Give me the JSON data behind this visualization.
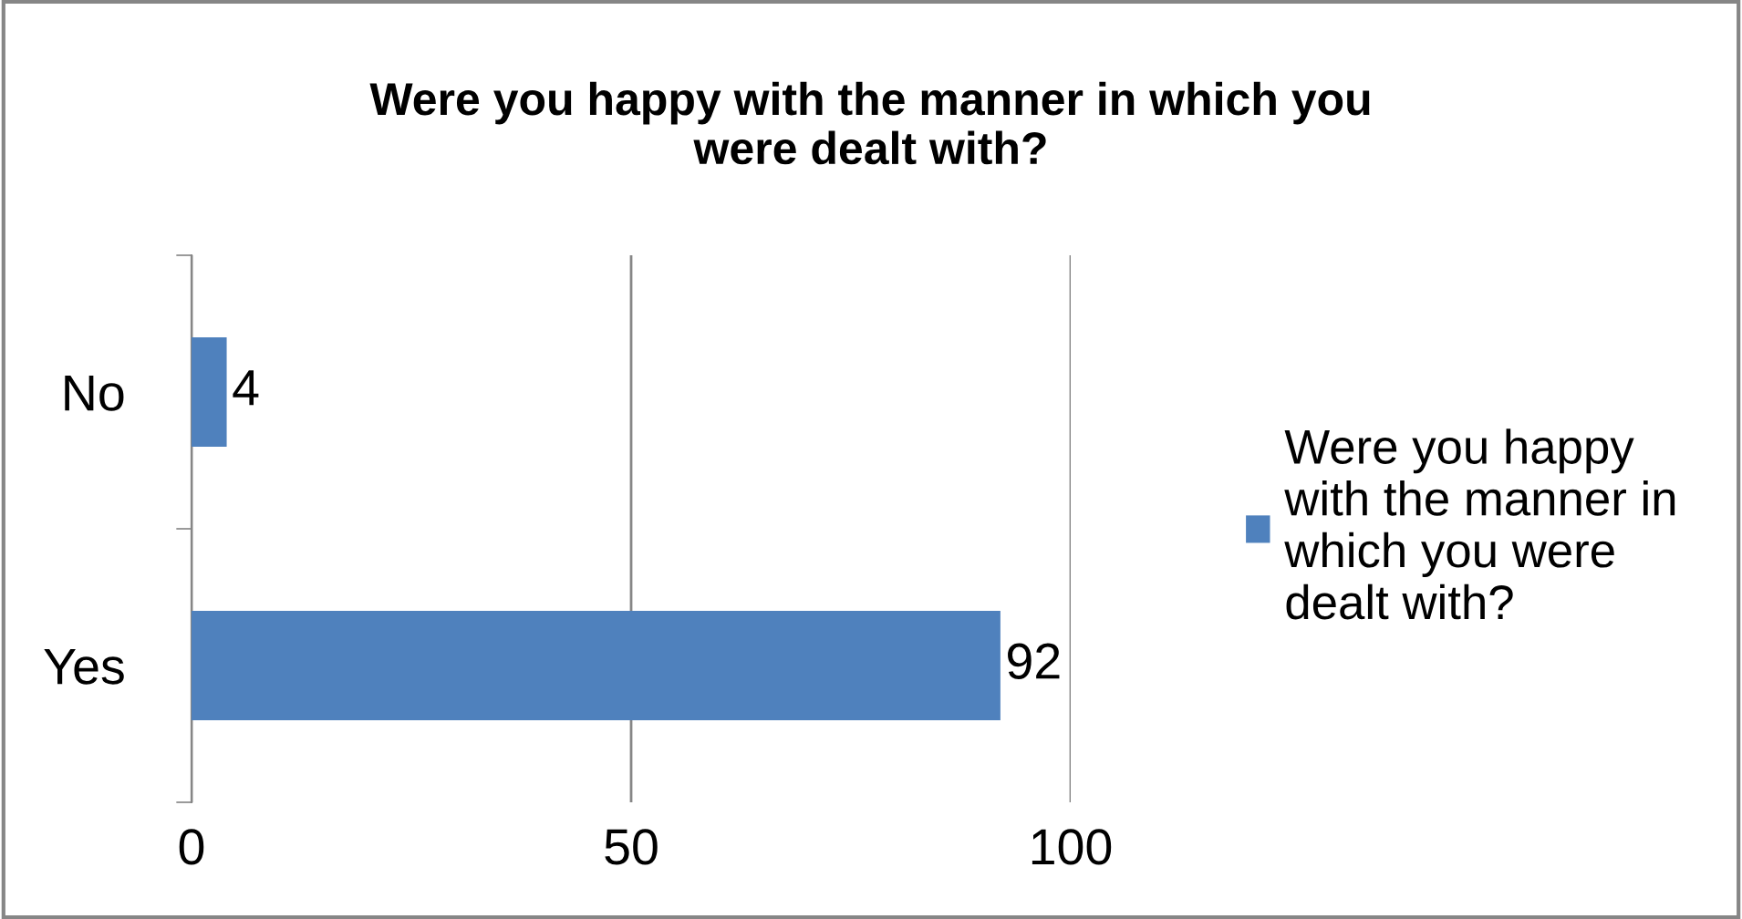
{
  "chart_data": {
    "type": "bar",
    "orientation": "horizontal",
    "title": "Were you happy with the manner in which you\nwere dealt with?",
    "categories": [
      "No",
      "Yes"
    ],
    "series": [
      {
        "name": "Were you happy\nwith the manner in\nwhich you were\ndealt with?",
        "color": "#4f81bd",
        "values": [
          4,
          92
        ]
      }
    ],
    "xlim": [
      0,
      100
    ],
    "xticks": [
      0,
      50,
      100
    ],
    "grid": "x",
    "legend": "right",
    "data_labels": true
  }
}
